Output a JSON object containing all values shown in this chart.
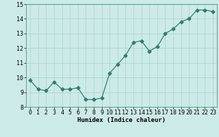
{
  "x": [
    0,
    1,
    2,
    3,
    4,
    5,
    6,
    7,
    8,
    9,
    10,
    11,
    12,
    13,
    14,
    15,
    16,
    17,
    18,
    19,
    20,
    21,
    22,
    23
  ],
  "y": [
    9.8,
    9.2,
    9.1,
    9.7,
    9.2,
    9.2,
    9.3,
    8.5,
    8.5,
    8.6,
    10.3,
    10.9,
    11.5,
    12.4,
    12.5,
    11.8,
    12.1,
    13.0,
    13.3,
    13.8,
    14.0,
    14.6,
    14.6,
    14.5
  ],
  "line_color": "#2e7d6e",
  "marker": "D",
  "marker_size": 2.5,
  "bg_color": "#cceae7",
  "grid_color": "#aed6d2",
  "xlabel": "Humidex (Indice chaleur)",
  "ylabel": "",
  "xlim": [
    -0.5,
    23.5
  ],
  "ylim": [
    8,
    15
  ],
  "yticks": [
    8,
    9,
    10,
    11,
    12,
    13,
    14,
    15
  ],
  "xticks": [
    0,
    1,
    2,
    3,
    4,
    5,
    6,
    7,
    8,
    9,
    10,
    11,
    12,
    13,
    14,
    15,
    16,
    17,
    18,
    19,
    20,
    21,
    22,
    23
  ],
  "xlabel_fontsize": 6.5,
  "tick_fontsize": 6.0
}
